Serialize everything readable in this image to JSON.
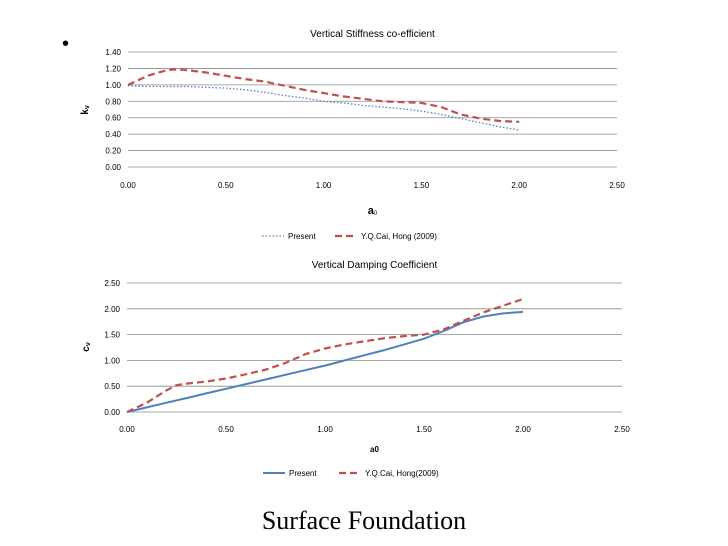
{
  "slide": {
    "bullet": "•",
    "footer_title": "Surface Foundation"
  },
  "chart_data": [
    {
      "type": "line",
      "title": "Vertical Stiffness co-efficient",
      "xlabel": "a",
      "xlabel_sub": "0",
      "ylabel": "k",
      "ylabel_sub": "v",
      "xlim": [
        0,
        2.5
      ],
      "ylim": [
        0,
        1.4
      ],
      "xticks": [
        "0.00",
        "0.50",
        "1.00",
        "1.50",
        "2.00",
        "2.50"
      ],
      "yticks": [
        "0.00",
        "0.20",
        "0.40",
        "0.60",
        "0.80",
        "1.00",
        "1.20",
        "1.40"
      ],
      "grid": "horizontal",
      "legend_position": "bottom",
      "series": [
        {
          "name": "Present",
          "style": "dotted",
          "color": "#4f81bd",
          "x": [
            0,
            0.1,
            0.2,
            0.3,
            0.4,
            0.5,
            0.6,
            0.7,
            0.8,
            0.9,
            1.0,
            1.1,
            1.2,
            1.3,
            1.4,
            1.5,
            1.6,
            1.7,
            1.8,
            1.9,
            2.0
          ],
          "y": [
            0.99,
            0.98,
            0.98,
            0.98,
            0.97,
            0.96,
            0.94,
            0.91,
            0.87,
            0.84,
            0.8,
            0.78,
            0.75,
            0.73,
            0.71,
            0.68,
            0.64,
            0.59,
            0.54,
            0.49,
            0.45
          ]
        },
        {
          "name": "Y.Q.Cai, Hong (2009)",
          "style": "dashed",
          "color": "#c0504d",
          "x": [
            0,
            0.1,
            0.2,
            0.25,
            0.3,
            0.4,
            0.5,
            0.6,
            0.7,
            0.8,
            0.9,
            1.0,
            1.1,
            1.2,
            1.3,
            1.4,
            1.5,
            1.6,
            1.7,
            1.8,
            1.9,
            2.0
          ],
          "y": [
            1.0,
            1.11,
            1.18,
            1.19,
            1.18,
            1.15,
            1.11,
            1.07,
            1.04,
            0.99,
            0.94,
            0.9,
            0.86,
            0.83,
            0.8,
            0.79,
            0.78,
            0.73,
            0.64,
            0.59,
            0.56,
            0.55
          ]
        }
      ]
    },
    {
      "type": "line",
      "title": "Vertical Damping Coefficient",
      "xlabel": "a0",
      "ylabel": "c",
      "ylabel_sub": "v",
      "xlim": [
        0,
        2.5
      ],
      "ylim": [
        0,
        2.5
      ],
      "xticks": [
        "0.00",
        "0.50",
        "1.00",
        "1.50",
        "2.00",
        "2.50"
      ],
      "yticks": [
        "0.00",
        "0.50",
        "1.00",
        "1.50",
        "2.00",
        "2.50"
      ],
      "grid": "horizontal",
      "legend_position": "bottom",
      "series": [
        {
          "name": "Present",
          "style": "solid",
          "color": "#4f81bd",
          "x": [
            0,
            0.1,
            0.2,
            0.3,
            0.4,
            0.5,
            0.6,
            0.7,
            0.8,
            0.9,
            1.0,
            1.1,
            1.2,
            1.3,
            1.4,
            1.5,
            1.6,
            1.7,
            1.8,
            1.9,
            2.0
          ],
          "y": [
            0,
            0.09,
            0.18,
            0.27,
            0.36,
            0.45,
            0.54,
            0.63,
            0.72,
            0.81,
            0.9,
            1.0,
            1.1,
            1.2,
            1.31,
            1.42,
            1.57,
            1.74,
            1.85,
            1.91,
            1.94
          ]
        },
        {
          "name": "Y.Q.Cai, Hong(2009)",
          "style": "dashed",
          "color": "#c0504d",
          "x": [
            0,
            0.1,
            0.2,
            0.25,
            0.3,
            0.4,
            0.5,
            0.6,
            0.7,
            0.8,
            0.9,
            1.0,
            1.1,
            1.2,
            1.3,
            1.4,
            1.5,
            1.6,
            1.7,
            1.8,
            1.9,
            2.0
          ],
          "y": [
            0,
            0.18,
            0.42,
            0.52,
            0.55,
            0.59,
            0.65,
            0.73,
            0.82,
            0.95,
            1.12,
            1.23,
            1.31,
            1.37,
            1.43,
            1.47,
            1.5,
            1.6,
            1.77,
            1.93,
            2.06,
            2.19
          ]
        }
      ]
    }
  ]
}
